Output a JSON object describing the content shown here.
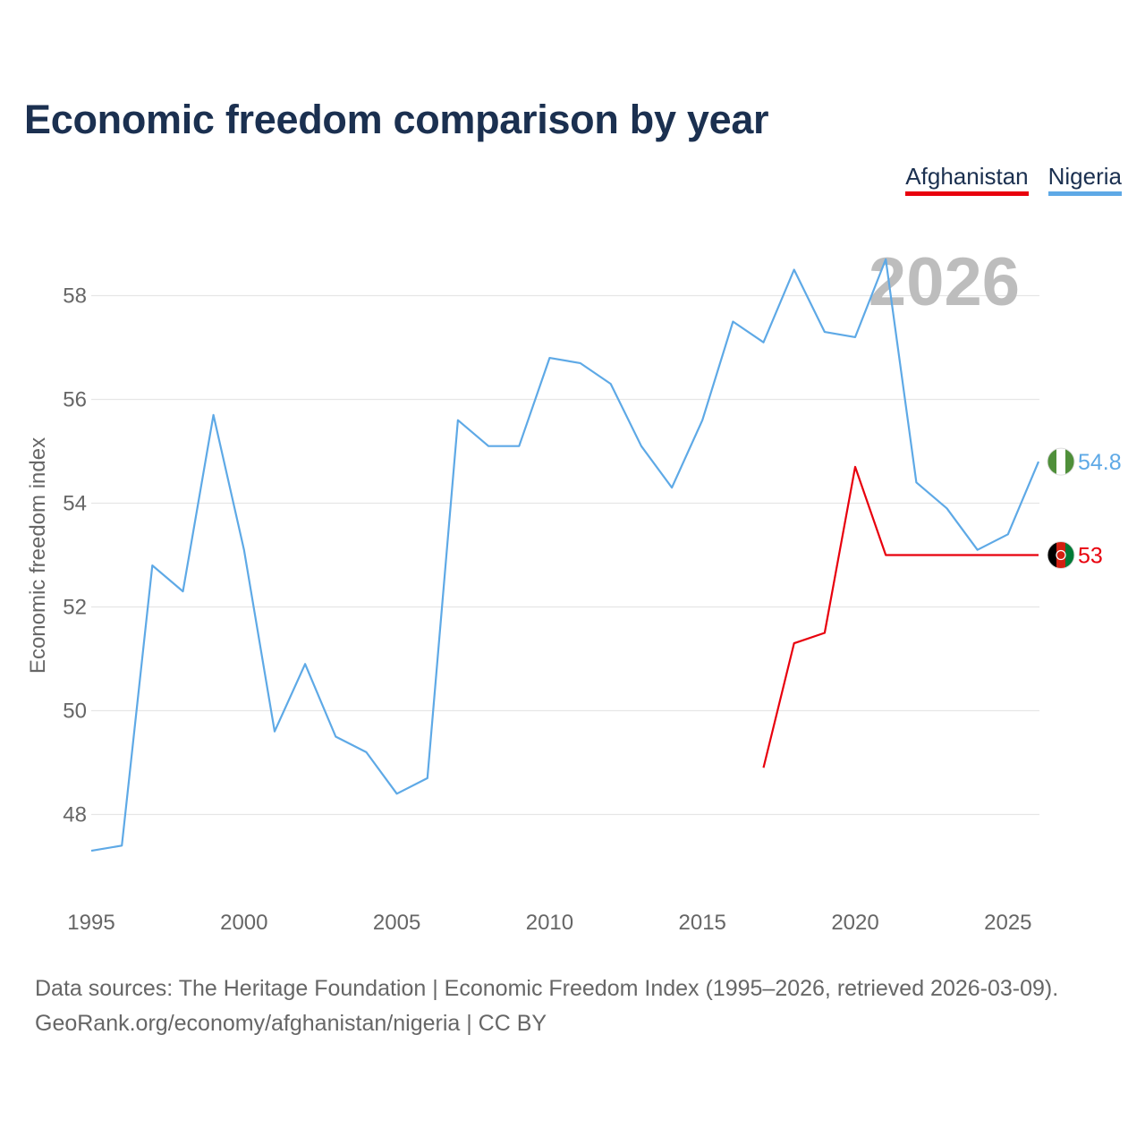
{
  "chart_data": {
    "type": "line",
    "title": "Economic freedom comparison by year",
    "ylabel": "Economic freedom index",
    "xlabel": "",
    "xlim": [
      1995,
      2026
    ],
    "ylim": [
      47,
      59
    ],
    "x_ticks": [
      "1995",
      "2000",
      "2005",
      "2010",
      "2015",
      "2020",
      "2025"
    ],
    "y_ticks": [
      "48",
      "50",
      "52",
      "54",
      "56",
      "58"
    ],
    "current_year": "2026",
    "legend_position": "top-right",
    "series": [
      {
        "name": "Afghanistan",
        "color": "#e8000d",
        "x": [
          2017,
          2018,
          2019,
          2020,
          2021,
          2022,
          2023,
          2024,
          2025,
          2026
        ],
        "values": [
          48.9,
          51.3,
          51.5,
          54.7,
          53.0,
          53.0,
          53.0,
          53.0,
          53.0,
          53.0
        ],
        "end_label": "53",
        "flag_icon": "afghanistan-flag-icon"
      },
      {
        "name": "Nigeria",
        "color": "#5ea9e6",
        "x": [
          1995,
          1996,
          1997,
          1998,
          1999,
          2000,
          2001,
          2002,
          2003,
          2004,
          2005,
          2006,
          2007,
          2008,
          2009,
          2010,
          2011,
          2012,
          2013,
          2014,
          2015,
          2016,
          2017,
          2018,
          2019,
          2020,
          2021,
          2022,
          2023,
          2024,
          2025,
          2026
        ],
        "values": [
          47.3,
          47.4,
          52.8,
          52.3,
          55.7,
          53.1,
          49.6,
          50.9,
          49.5,
          49.2,
          48.4,
          48.7,
          55.6,
          55.1,
          55.1,
          56.8,
          56.7,
          56.3,
          55.1,
          54.3,
          55.6,
          57.5,
          57.1,
          58.5,
          57.3,
          57.2,
          58.7,
          54.4,
          53.9,
          53.1,
          53.4,
          54.8
        ],
        "end_label": "54.8",
        "flag_icon": "nigeria-flag-icon"
      }
    ]
  },
  "footer": {
    "line1": "Data sources: The Heritage Foundation | Economic Freedom Index (1995–2026, retrieved 2026-03-09).",
    "line2": "GeoRank.org/economy/afghanistan/nigeria | CC BY"
  }
}
